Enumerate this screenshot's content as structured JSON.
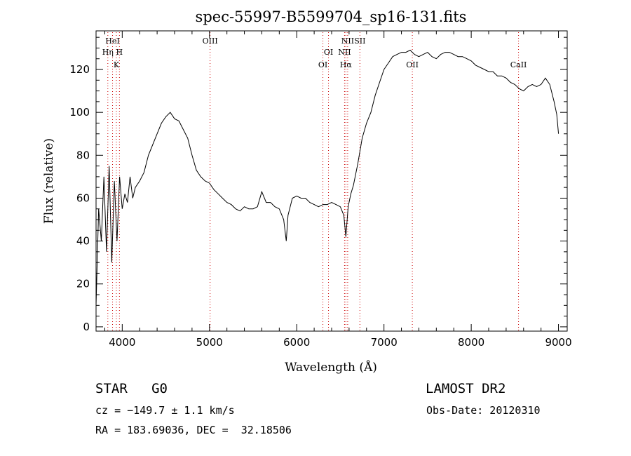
{
  "chart_data": {
    "type": "line",
    "title": "spec-55997-B5599704_sp16-131.fits",
    "xlabel": "Wavelength (Å)",
    "ylabel": "Flux (relative)",
    "xlim": [
      3700,
      9100
    ],
    "ylim": [
      -2,
      138
    ],
    "x_ticks": [
      4000,
      5000,
      6000,
      7000,
      8000,
      9000
    ],
    "y_ticks": [
      0,
      20,
      40,
      60,
      80,
      100,
      120
    ],
    "series": [
      {
        "x": [
          3700,
          3730,
          3760,
          3790,
          3820,
          3850,
          3880,
          3910,
          3940,
          3970,
          4000,
          4030,
          4060,
          4090,
          4120,
          4150,
          4200,
          4250,
          4300,
          4350,
          4400,
          4450,
          4500,
          4550,
          4600,
          4650,
          4700,
          4750,
          4800,
          4850,
          4900,
          4950,
          5000,
          5050,
          5100,
          5150,
          5200,
          5250,
          5300,
          5350,
          5400,
          5450,
          5500,
          5550,
          5600,
          5650,
          5700,
          5750,
          5800,
          5850,
          5880,
          5900,
          5950,
          6000,
          6050,
          6100,
          6150,
          6200,
          6250,
          6300,
          6350,
          6400,
          6450,
          6500,
          6540,
          6563,
          6590,
          6620,
          6650,
          6700,
          6750,
          6800,
          6850,
          6900,
          6950,
          7000,
          7050,
          7100,
          7150,
          7200,
          7250,
          7300,
          7350,
          7400,
          7450,
          7500,
          7550,
          7600,
          7650,
          7700,
          7750,
          7800,
          7850,
          7900,
          7950,
          8000,
          8050,
          8100,
          8150,
          8200,
          8250,
          8300,
          8350,
          8400,
          8450,
          8500,
          8550,
          8600,
          8650,
          8700,
          8750,
          8800,
          8850,
          8900,
          8950,
          8980,
          9000
        ],
        "y": [
          10,
          55,
          40,
          70,
          35,
          75,
          30,
          68,
          40,
          70,
          55,
          62,
          58,
          70,
          60,
          65,
          68,
          72,
          80,
          85,
          90,
          95,
          98,
          100,
          97,
          96,
          92,
          88,
          80,
          73,
          70,
          68,
          67,
          64,
          62,
          60,
          58,
          57,
          55,
          54,
          56,
          55,
          55,
          56,
          63,
          58,
          58,
          56,
          55,
          50,
          40,
          52,
          60,
          61,
          60,
          60,
          58,
          57,
          56,
          57,
          57,
          58,
          57,
          56,
          52,
          42,
          56,
          62,
          66,
          76,
          88,
          95,
          100,
          108,
          114,
          120,
          123,
          126,
          127,
          128,
          128,
          129,
          127,
          126,
          127,
          128,
          126,
          125,
          127,
          128,
          128,
          127,
          126,
          126,
          125,
          124,
          122,
          121,
          120,
          119,
          119,
          117,
          117,
          116,
          114,
          113,
          111,
          110,
          112,
          113,
          112,
          113,
          116,
          113,
          105,
          99,
          90
        ]
      }
    ],
    "line_markers": [
      {
        "label": "HeI",
        "wavelength": 3889,
        "row": 0
      },
      {
        "label": "Hη",
        "wavelength": 3835,
        "row": 1
      },
      {
        "label": "H",
        "wavelength": 3968,
        "row": 1
      },
      {
        "label": "K",
        "wavelength": 3933,
        "row": 2
      },
      {
        "label": "OIII",
        "wavelength": 5007,
        "row": 0
      },
      {
        "label": "OI",
        "wavelength": 6364,
        "row": 1
      },
      {
        "label": "OI",
        "wavelength": 6300,
        "row": 2
      },
      {
        "label": "NII",
        "wavelength": 6584,
        "row": 0
      },
      {
        "label": "SII",
        "wavelength": 6724,
        "row": 0
      },
      {
        "label": "NII",
        "wavelength": 6548,
        "row": 1
      },
      {
        "label": "Hα",
        "wavelength": 6563,
        "row": 2
      },
      {
        "label": "OII",
        "wavelength": 7325,
        "row": 2
      },
      {
        "label": "CaII",
        "wavelength": 8542,
        "row": 2
      }
    ],
    "grid": false
  },
  "info": {
    "class": "STAR",
    "subclass": "G0",
    "survey": "LAMOST DR2",
    "cz": "cz = −149.7 ± 1.1 km/s",
    "obsdate": "Obs-Date: 20120310",
    "radec": "RA = 183.69036, DEC =  32.18506"
  },
  "colors": {
    "spectrum": "#000000",
    "marker": "#cc0000",
    "axis": "#000000"
  }
}
